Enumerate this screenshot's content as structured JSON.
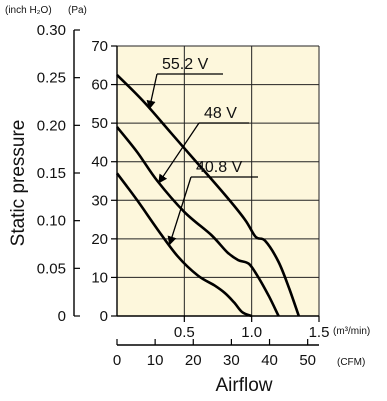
{
  "chart_data": {
    "type": "line",
    "title": "",
    "ylabel": "Static pressure",
    "xlabel": "Airflow",
    "units": {
      "left_outer": "(inch H₂O)",
      "left_inner": "(Pa)",
      "bottom_upper": "(m³/min)",
      "bottom_lower": "(CFM)"
    },
    "y_pa_ticks": [
      "0",
      "10",
      "20",
      "30",
      "40",
      "50",
      "60",
      "70"
    ],
    "y_inch_ticks": [
      "0",
      "0.05",
      "0.10",
      "0.15",
      "0.20",
      "0.25",
      "0.30"
    ],
    "x_m3_ticks": [
      "0.5",
      "1.0",
      "1.5"
    ],
    "x_cfm_ticks": [
      "0",
      "10",
      "20",
      "30",
      "40",
      "50"
    ],
    "ylim_pa": [
      0,
      70
    ],
    "xlim_m3min": [
      0,
      1.5
    ],
    "grid": true,
    "series": [
      {
        "name": "55.2 V",
        "x": [
          0,
          0.2,
          0.4,
          0.6,
          0.8,
          0.95,
          1.03,
          1.1,
          1.2,
          1.28,
          1.35
        ],
        "y": [
          62.5,
          55.5,
          47.5,
          39.5,
          31.5,
          25,
          20.5,
          19.5,
          14,
          7,
          0
        ]
      },
      {
        "name": "48 V",
        "x": [
          0,
          0.15,
          0.3,
          0.5,
          0.7,
          0.82,
          0.9,
          0.98,
          1.05,
          1.13,
          1.2
        ],
        "y": [
          49,
          42.5,
          35,
          27,
          21,
          16.5,
          14.5,
          13.5,
          10,
          5,
          0
        ]
      },
      {
        "name": "40.8 V",
        "x": [
          0,
          0.15,
          0.3,
          0.45,
          0.6,
          0.72,
          0.8,
          0.87,
          0.93,
          1.0
        ],
        "y": [
          37,
          30,
          22.5,
          15.5,
          10.5,
          8,
          6,
          3.5,
          1,
          0
        ]
      }
    ]
  }
}
